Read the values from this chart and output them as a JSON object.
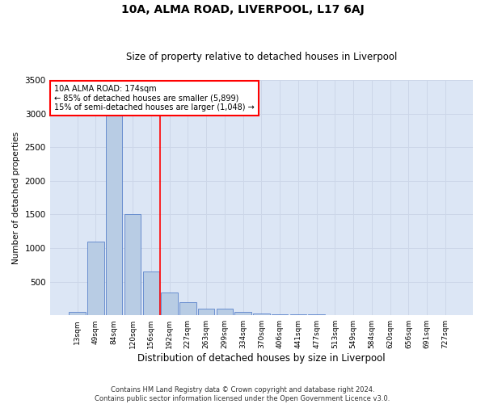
{
  "title": "10A, ALMA ROAD, LIVERPOOL, L17 6AJ",
  "subtitle": "Size of property relative to detached houses in Liverpool",
  "xlabel": "Distribution of detached houses by size in Liverpool",
  "ylabel": "Number of detached properties",
  "categories": [
    "13sqm",
    "49sqm",
    "84sqm",
    "120sqm",
    "156sqm",
    "192sqm",
    "227sqm",
    "263sqm",
    "299sqm",
    "334sqm",
    "370sqm",
    "406sqm",
    "441sqm",
    "477sqm",
    "513sqm",
    "549sqm",
    "584sqm",
    "620sqm",
    "656sqm",
    "691sqm",
    "727sqm"
  ],
  "values": [
    50,
    1100,
    3000,
    1500,
    650,
    340,
    200,
    100,
    100,
    50,
    30,
    20,
    10,
    20,
    5,
    5,
    5,
    3,
    3,
    2,
    2
  ],
  "bar_color": "#b8cce4",
  "bar_edge_color": "#4472c4",
  "annotation_text_line1": "10A ALMA ROAD: 174sqm",
  "annotation_text_line2": "← 85% of detached houses are smaller (5,899)",
  "annotation_text_line3": "15% of semi-detached houses are larger (1,048) →",
  "annotation_box_color": "white",
  "annotation_box_edge_color": "red",
  "vline_color": "red",
  "vline_x_index": 4.5,
  "grid_color": "#ccd6e8",
  "background_color": "#dce6f5",
  "footer_line1": "Contains HM Land Registry data © Crown copyright and database right 2024.",
  "footer_line2": "Contains public sector information licensed under the Open Government Licence v3.0.",
  "ylim": [
    0,
    3500
  ],
  "yticks": [
    0,
    500,
    1000,
    1500,
    2000,
    2500,
    3000,
    3500
  ]
}
